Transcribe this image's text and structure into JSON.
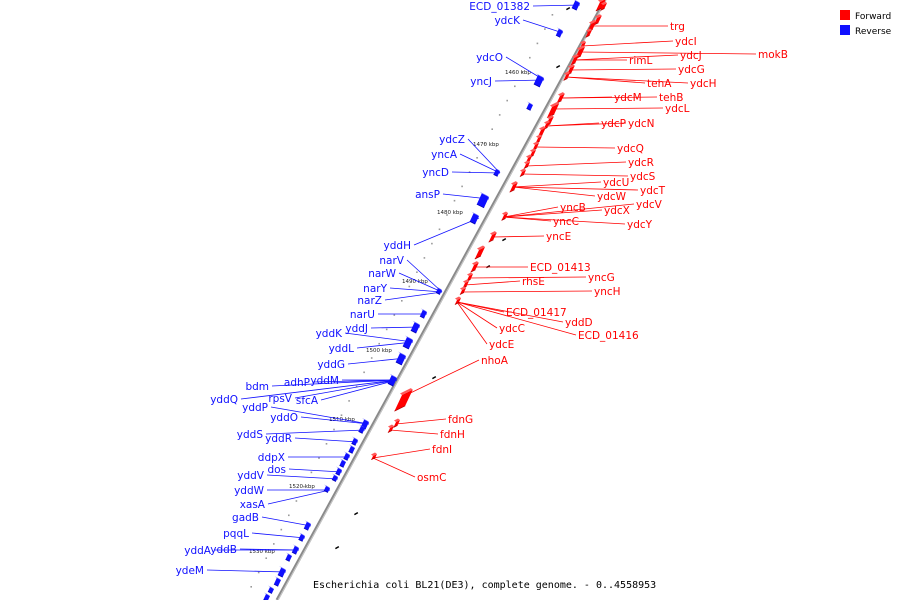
{
  "caption": "Escherichia coli BL21(DE3), complete genome. - 0..4558953",
  "legend": {
    "forward": {
      "label": "Forward",
      "color": "#ff0000"
    },
    "reverse": {
      "label": "Reverse",
      "color": "#1010ff"
    }
  },
  "ticks": [
    "1460 kbp",
    "1470 kbp",
    "1480 kbp",
    "1490 kbp",
    "1500 kbp",
    "1510 kbp",
    "1520 kbp",
    "1530 kbp"
  ],
  "forward_genes": [
    "trg",
    "mokB",
    "ydcI",
    "ydcJ",
    "rimL",
    "ydcG",
    "tehA",
    "ydcH",
    "ydcM",
    "tehB",
    "ydcL",
    "ydcP",
    "ydcN",
    "ydcQ",
    "ydcR",
    "ydcS",
    "ydcT",
    "ydcU",
    "ydcV",
    "ydcW",
    "ydcX",
    "ydcY",
    "yncB",
    "yncC",
    "yncE",
    "ECD_01413",
    "yncG",
    "rhsE",
    "yncH",
    "ECD_01417",
    "yddD",
    "ydcC",
    "ECD_01416",
    "ydcE",
    "nhoA",
    "fdnG",
    "fdnH",
    "fdnI",
    "osmC"
  ],
  "reverse_genes": [
    "ECD_01382",
    "ydcK",
    "ydcO",
    "yncJ",
    "ydcZ",
    "yncA",
    "yncD",
    "ansP",
    "yddH",
    "narV",
    "narW",
    "narY",
    "narZ",
    "narU",
    "yddJ",
    "yddK",
    "yddL",
    "yddG",
    "yddM",
    "adhP",
    "bdm",
    "rpsV",
    "sfcA",
    "yddQ",
    "yddP",
    "yddO",
    "yddS",
    "yddR",
    "ddpX",
    "dos",
    "yddV",
    "yddW",
    "xasA",
    "gadB",
    "pqqL",
    "yddA",
    "yddB",
    "ydeM"
  ]
}
